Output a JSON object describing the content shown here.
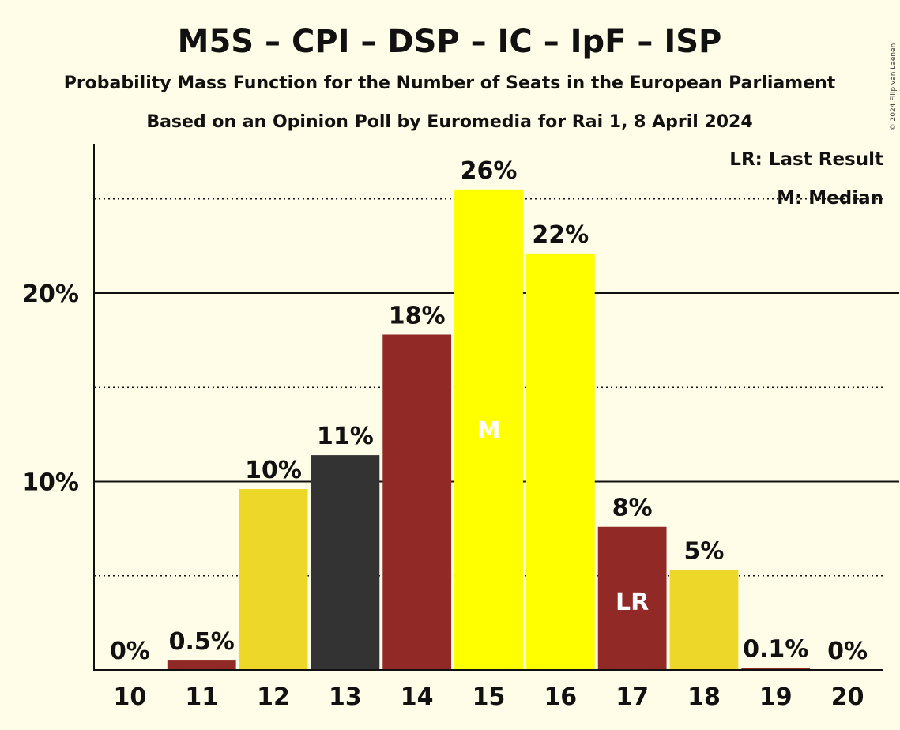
{
  "chart_data": {
    "type": "bar",
    "title": "M5S – CPI – DSP – IC – IpF – ISP",
    "subtitle": "Probability Mass Function for the Number of Seats in the European Parliament",
    "subtitle2": "Based on an Opinion Poll by Euromedia for Rai 1, 8 April 2024",
    "credit": "© 2024 Filip van Laenen",
    "legend": [
      "LR: Last Result",
      "M: Median"
    ],
    "legend_placement": "top-right",
    "categories": [
      "10",
      "11",
      "12",
      "13",
      "14",
      "15",
      "16",
      "17",
      "18",
      "19",
      "20"
    ],
    "values": [
      0,
      0.5,
      9.6,
      11.4,
      17.8,
      25.5,
      22.1,
      7.6,
      5.3,
      0.1,
      0
    ],
    "data_labels": [
      "0%",
      "0.5%",
      "10%",
      "11%",
      "18%",
      "26%",
      "22%",
      "8%",
      "5%",
      "0.1%",
      "0%"
    ],
    "bar_colors": [
      "#912A27",
      "#912A27",
      "#EDD82A",
      "#333333",
      "#912A27",
      "#FFFF00",
      "#FFFF00",
      "#912A27",
      "#EDD82A",
      "#912A27",
      "#912A27"
    ],
    "markers": [
      {
        "category": "15",
        "label": "M"
      },
      {
        "category": "17",
        "label": "LR"
      }
    ],
    "y_ticks": [
      {
        "value": 10,
        "label": "10%"
      },
      {
        "value": 20,
        "label": "20%"
      }
    ],
    "y_minor_gridlines": [
      5,
      15,
      25
    ],
    "ylim": [
      0,
      28
    ],
    "grid": true,
    "colors": {
      "background": "#FFFDE7",
      "axis": "#111111",
      "marker_text": "#FFFFFF"
    }
  }
}
